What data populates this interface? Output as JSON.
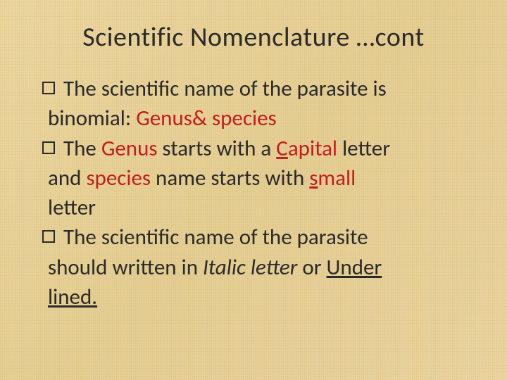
{
  "slide": {
    "title": "Scientific Nomenclature …cont",
    "background_color": "#e8d29a",
    "title_color": "#2a2a2a",
    "title_fontsize": 38,
    "body_fontsize": 31,
    "body_color": "#2a2a2a",
    "accent_color": "#c41e1e",
    "bullets": [
      {
        "line1_a": "The scientific name of the parasite is",
        "line2_a": "binomial: ",
        "line2_b_red": "Genus& species"
      },
      {
        "line1_a": "The ",
        "line1_b_red": "Genus",
        "line1_c": "  starts with a ",
        "line1_d_red_ul": "C",
        "line1_e_red": "apital",
        "line1_f": " letter",
        "line2_a": "and ",
        "line2_b_red": "species",
        "line2_c": " name starts with ",
        "line2_d_red_ul": "s",
        "line2_e_red": "mall",
        "line3_a": "letter"
      },
      {
        "line1_a": "The scientific name of the parasite",
        "line2_a": "should written in ",
        "line2_b_italic": "Italic letter",
        "line2_c": " or ",
        "line2_d_ul": "Under",
        "line3_a_ul": "lined."
      }
    ]
  }
}
